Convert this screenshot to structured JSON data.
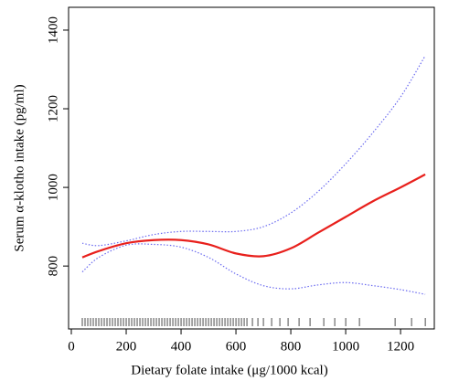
{
  "chart_data": {
    "type": "line",
    "x_label": "Dietary folate intake (μg/1000 kcal)",
    "y_label": "Serum α-klotho intake (pg/ml)",
    "x": [
      40,
      100,
      200,
      300,
      400,
      500,
      600,
      700,
      800,
      900,
      1000,
      1100,
      1200,
      1290
    ],
    "series": [
      {
        "color": "#e8201c",
        "line_style": "solid",
        "values": [
          822,
          838,
          858,
          866,
          866,
          855,
          832,
          825,
          845,
          885,
          925,
          965,
          1000,
          1033
        ]
      },
      {
        "color": "#6b6bf0",
        "line_style": "dotted",
        "values": [
          858,
          852,
          864,
          880,
          888,
          888,
          888,
          900,
          935,
          990,
          1060,
          1140,
          1230,
          1335
        ]
      },
      {
        "color": "#6b6bf0",
        "line_style": "dotted",
        "values": [
          785,
          822,
          853,
          855,
          848,
          822,
          780,
          750,
          742,
          752,
          758,
          750,
          740,
          728
        ]
      }
    ],
    "rug": [
      40,
      50,
      60,
      70,
      80,
      90,
      100,
      110,
      120,
      130,
      140,
      150,
      160,
      170,
      180,
      190,
      200,
      210,
      220,
      230,
      240,
      250,
      260,
      270,
      280,
      290,
      300,
      310,
      320,
      330,
      340,
      350,
      360,
      370,
      380,
      390,
      400,
      410,
      420,
      430,
      440,
      450,
      460,
      470,
      480,
      490,
      500,
      510,
      520,
      530,
      540,
      550,
      560,
      570,
      580,
      590,
      600,
      610,
      620,
      630,
      640,
      660,
      680,
      700,
      730,
      760,
      790,
      830,
      870,
      920,
      960,
      1000,
      1050,
      1180,
      1240,
      1290
    ],
    "xlim": [
      -10,
      1323
    ],
    "xticks": [
      0,
      200,
      400,
      600,
      800,
      1000,
      1200
    ],
    "ylim": [
      640,
      1458
    ],
    "yticks": [
      800,
      1000,
      1200,
      1400
    ]
  }
}
